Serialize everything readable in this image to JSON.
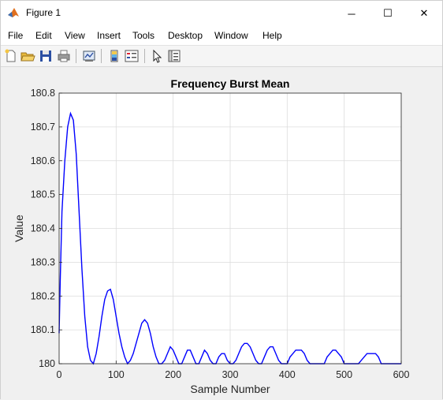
{
  "window": {
    "title": "Figure 1",
    "buttons": {
      "minimize": "─",
      "maximize": "☐",
      "close": "✕"
    }
  },
  "menu": {
    "items": [
      "File",
      "Edit",
      "View",
      "Insert",
      "Tools",
      "Desktop",
      "Window",
      "Help"
    ],
    "dock_glyph": "↘"
  },
  "toolbar": {
    "buttons": [
      "new-figure-icon",
      "open-file-icon",
      "save-icon",
      "print-icon",
      "link-plot-icon",
      "colorbar-icon",
      "legend-icon",
      "edit-plot-arrow-icon",
      "property-inspector-icon"
    ]
  },
  "colors": {
    "line": "#0000ff",
    "axes_bg": "#ffffff",
    "grid": "#dcdcdc"
  },
  "chart_data": {
    "type": "line",
    "title": "Frequency Burst Mean",
    "xlabel": "Sample Number",
    "ylabel": "Value",
    "xlim": [
      0,
      600
    ],
    "ylim": [
      180,
      180.8
    ],
    "xticks": [
      0,
      100,
      200,
      300,
      400,
      500,
      600
    ],
    "yticks": [
      180,
      180.1,
      180.2,
      180.3,
      180.4,
      180.5,
      180.6,
      180.7,
      180.8
    ],
    "grid": true,
    "series": [
      {
        "color": "#0000ff",
        "x": [
          0,
          2,
          5,
          10,
          15,
          20,
          25,
          30,
          35,
          40,
          45,
          50,
          55,
          60,
          65,
          70,
          75,
          80,
          85,
          90,
          95,
          100,
          105,
          110,
          115,
          120,
          125,
          130,
          135,
          140,
          145,
          150,
          155,
          160,
          165,
          170,
          175,
          180,
          185,
          190,
          195,
          200,
          205,
          210,
          215,
          220,
          225,
          230,
          235,
          240,
          245,
          250,
          255,
          260,
          265,
          270,
          275,
          280,
          285,
          290,
          295,
          300,
          305,
          310,
          315,
          320,
          325,
          330,
          335,
          340,
          345,
          350,
          355,
          360,
          365,
          370,
          375,
          380,
          385,
          390,
          395,
          400,
          405,
          410,
          415,
          420,
          425,
          430,
          435,
          440,
          445,
          450,
          455,
          460,
          465,
          470,
          475,
          480,
          485,
          490,
          495,
          500,
          505,
          510,
          515,
          520,
          525,
          530,
          535,
          540,
          545,
          550,
          555,
          560,
          565,
          570,
          575,
          580,
          585,
          590,
          595,
          600
        ],
        "y": [
          180.09,
          180.25,
          180.45,
          180.6,
          180.7,
          180.74,
          180.72,
          180.62,
          180.45,
          180.28,
          180.14,
          180.05,
          180.01,
          180.0,
          180.03,
          180.08,
          180.14,
          180.19,
          180.215,
          180.22,
          180.19,
          180.14,
          180.09,
          180.05,
          180.02,
          180.0,
          180.01,
          180.03,
          180.06,
          180.09,
          180.12,
          180.13,
          180.12,
          180.09,
          180.05,
          180.02,
          180.0,
          180.0,
          180.01,
          180.03,
          180.05,
          180.04,
          180.02,
          180.0,
          180.0,
          180.02,
          180.04,
          180.04,
          180.02,
          180.0,
          180.0,
          180.02,
          180.04,
          180.03,
          180.01,
          180.0,
          180.0,
          180.02,
          180.03,
          180.03,
          180.01,
          180.0,
          180.0,
          180.01,
          180.03,
          180.05,
          180.06,
          180.06,
          180.05,
          180.03,
          180.01,
          180.0,
          180.0,
          180.02,
          180.04,
          180.05,
          180.05,
          180.03,
          180.01,
          180.0,
          180.0,
          180.0,
          180.02,
          180.03,
          180.04,
          180.04,
          180.04,
          180.03,
          180.01,
          180.0,
          180.0,
          180.0,
          180.0,
          180.0,
          180.0,
          180.02,
          180.03,
          180.04,
          180.04,
          180.03,
          180.02,
          180.0,
          180.0,
          180.0,
          180.0,
          180.0,
          180.0,
          180.01,
          180.02,
          180.03,
          180.03,
          180.03,
          180.03,
          180.02,
          180.0,
          180.0,
          180.0,
          180.0,
          180.0,
          180.0,
          180.0,
          180.0
        ]
      }
    ]
  }
}
